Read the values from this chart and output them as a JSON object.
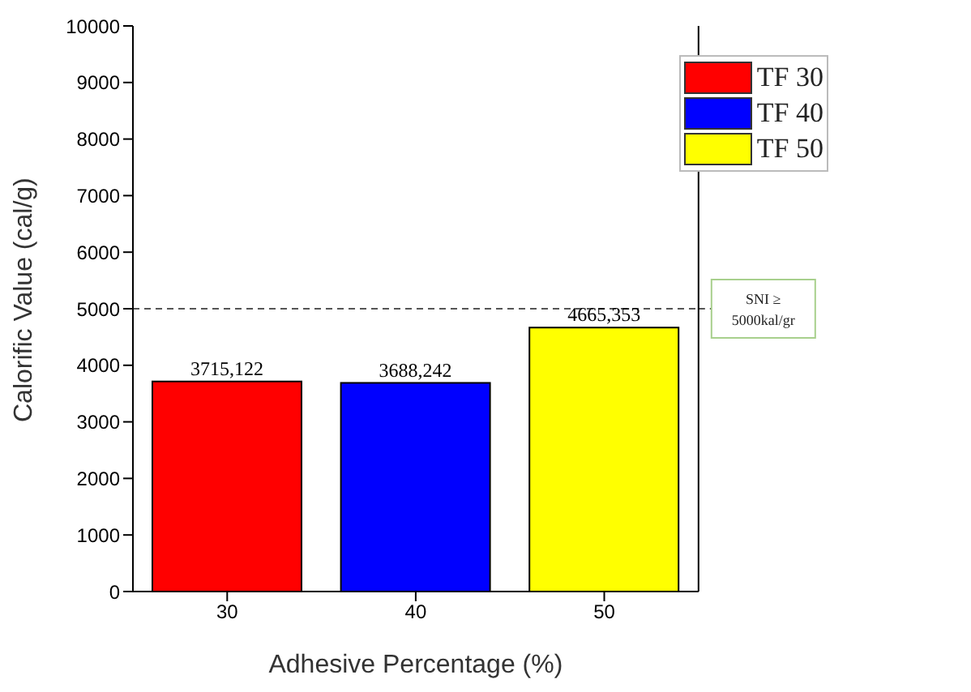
{
  "chart_data": {
    "type": "bar",
    "xlabel": "Adhesive Percentage (%)",
    "ylabel": "Calorific Value (cal/g)",
    "categories": [
      "30",
      "40",
      "50"
    ],
    "series": [
      {
        "name": "TF 30",
        "color": "#ff0000",
        "values": [
          3715.122,
          null,
          null
        ],
        "value_labels": [
          "3715,122",
          null,
          null
        ]
      },
      {
        "name": "TF 40",
        "color": "#0000ff",
        "values": [
          null,
          3688.242,
          null
        ],
        "value_labels": [
          null,
          "3688,242",
          null
        ]
      },
      {
        "name": "TF 50",
        "color": "#ffff00",
        "values": [
          null,
          null,
          4665.353
        ],
        "value_labels": [
          null,
          null,
          "4665,353"
        ]
      }
    ],
    "ylim": [
      0,
      10000
    ],
    "yticks": [
      0,
      1000,
      2000,
      3000,
      4000,
      5000,
      6000,
      7000,
      8000,
      9000,
      10000
    ],
    "ref_lines": [
      {
        "axis": "y",
        "value": 5000,
        "label": "SNI ≥ 5000kal/gr",
        "color": "#555555",
        "line_style": "dashed"
      }
    ],
    "legend": "top right",
    "grid": false
  }
}
